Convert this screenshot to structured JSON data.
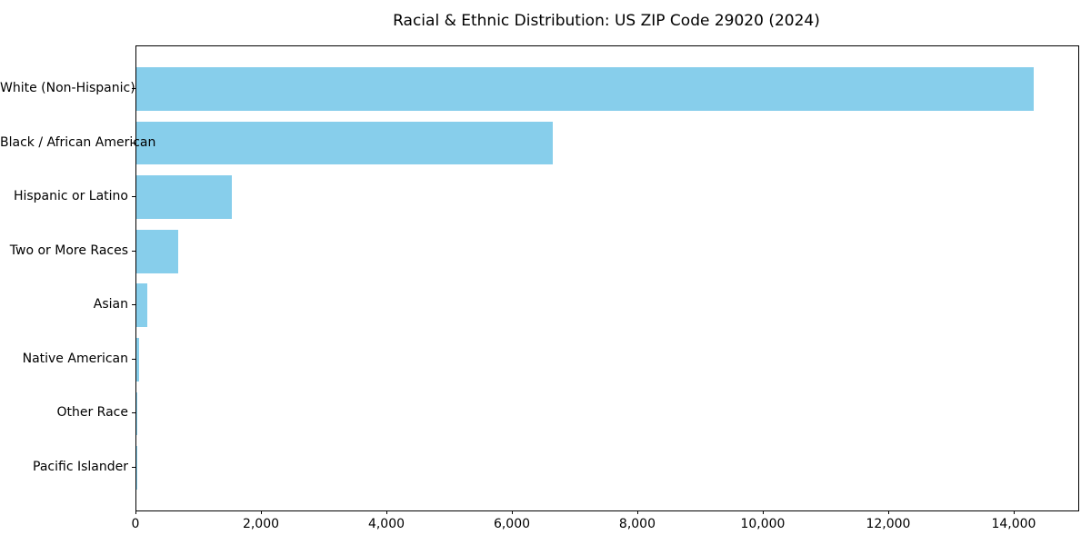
{
  "chart_data": {
    "type": "bar",
    "orientation": "horizontal",
    "title": "Racial & Ethnic Distribution: US ZIP Code 29020 (2024)",
    "xlabel": "",
    "ylabel": "",
    "categories": [
      "White (Non-Hispanic)",
      "Black / African American",
      "Hispanic or Latino",
      "Two or More Races",
      "Asian",
      "Native American",
      "Other Race",
      "Pacific Islander"
    ],
    "values": [
      14300,
      6640,
      1520,
      665,
      175,
      45,
      15,
      5
    ],
    "bar_color": "#87CEEB",
    "axis_color": "#000000",
    "text_color": "#000000",
    "xlim": [
      0,
      15015
    ],
    "x_ticks": [
      0,
      2000,
      4000,
      6000,
      8000,
      10000,
      12000,
      14000
    ],
    "x_tick_labels": [
      "0",
      "2,000",
      "4,000",
      "6,000",
      "8,000",
      "10,000",
      "12,000",
      "14,000"
    ],
    "grid": false,
    "legend": null
  }
}
